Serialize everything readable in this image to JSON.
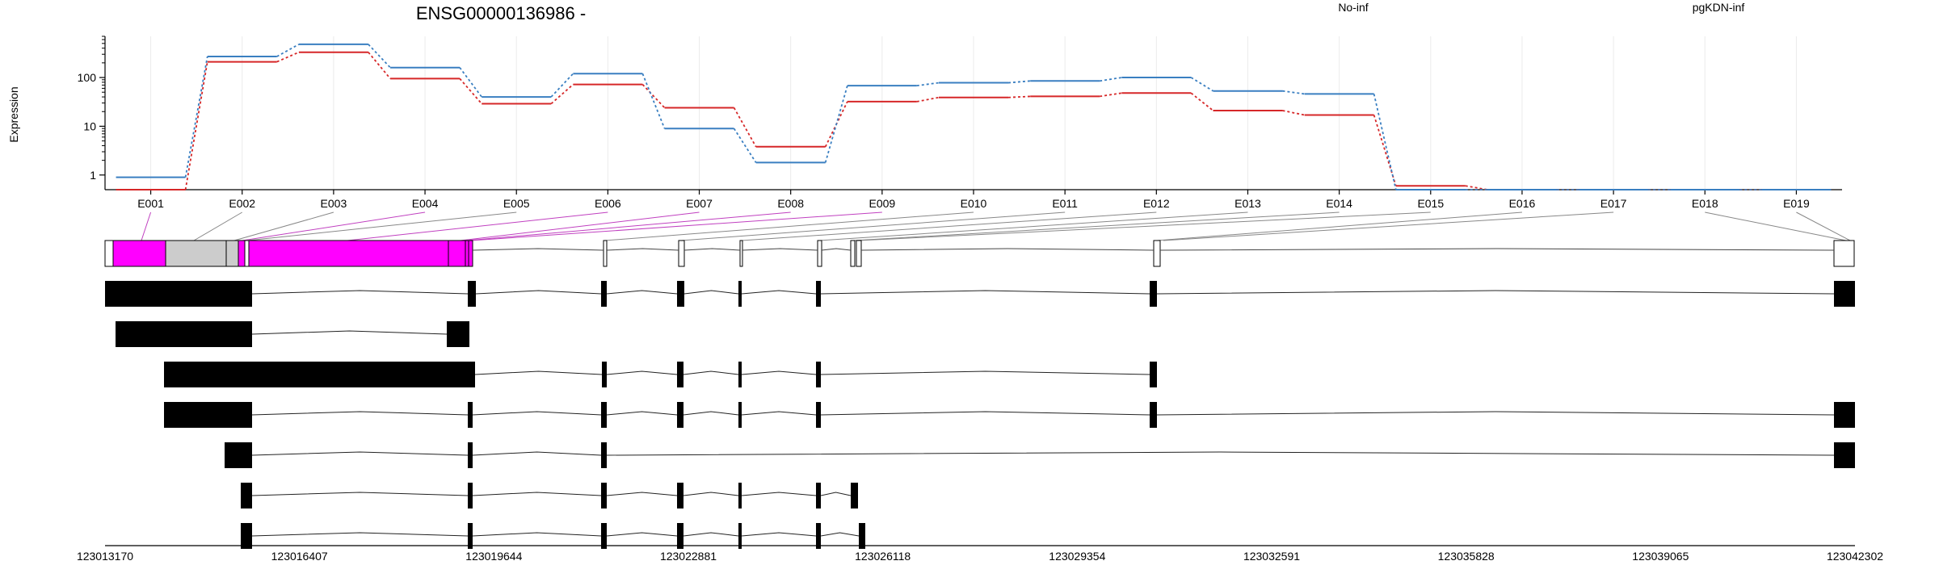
{
  "chart_data": {
    "type": "line",
    "title": "ENSG00000136986 -",
    "ylabel": "Expression",
    "yscale": "log",
    "yticks": [
      1,
      10,
      100
    ],
    "ytick_labels": [
      "1",
      "10",
      "100"
    ],
    "categories": [
      "E001",
      "E002",
      "E003",
      "E004",
      "E005",
      "E006",
      "E007",
      "E008",
      "E009",
      "E010",
      "E011",
      "E012",
      "E013",
      "E014",
      "E015",
      "E016",
      "E017",
      "E018",
      "E019"
    ],
    "series": [
      {
        "name": "No-inf",
        "color": "#d62728",
        "values": [
          0.5,
          210,
          330,
          95,
          29,
          72,
          24,
          3.8,
          32,
          39,
          41,
          48,
          21,
          17,
          0.6,
          0.5,
          0.5,
          0.5,
          0.5
        ]
      },
      {
        "name": "pgKDN-inf",
        "color": "#3a7fc1",
        "values": [
          0.9,
          270,
          480,
          160,
          40,
          120,
          9,
          1.8,
          68,
          78,
          85,
          100,
          53,
          46,
          0.5,
          0.5,
          0.5,
          0.5,
          0.5
        ]
      }
    ],
    "grid": true,
    "legend_position": "top-right",
    "gene_model": {
      "genomic_axis_ticks": [
        "123013170",
        "123016407",
        "123019644",
        "123022881",
        "123026118",
        "123029354",
        "123032591",
        "123035828",
        "123039065",
        "123042302"
      ],
      "exon_fill": [
        "#ff00ff",
        "#cccccc",
        "#cccccc",
        "#ff00ff",
        "#ffffff",
        "#ff00ff",
        "#ff00ff",
        "#ff00ff",
        "#ff00ff",
        "#ffffff",
        "#ffffff",
        "#ffffff",
        "#ffffff",
        "#ffffff",
        "#ffffff",
        "#ffffff",
        "#ffffff",
        "#ffffff",
        "#ffffff"
      ],
      "transcript_count": 7
    }
  }
}
